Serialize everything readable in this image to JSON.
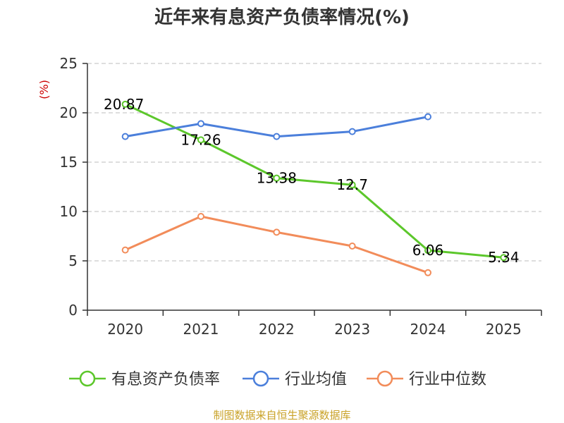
{
  "chart_data": {
    "type": "line",
    "title": "近年来有息资产负债率情况(%)",
    "ylabel": "(%)",
    "xlabel": "",
    "categories": [
      "2020",
      "2021",
      "2022",
      "2023",
      "2024",
      "2025"
    ],
    "ylim": [
      0,
      25
    ],
    "yticks": [
      0,
      5,
      10,
      15,
      20,
      25
    ],
    "grid": true,
    "legend_position": "bottom",
    "series": [
      {
        "name": "有息资产负债率",
        "color": "#5cc72b",
        "values": [
          20.87,
          17.26,
          13.38,
          12.7,
          6.06,
          5.34
        ],
        "labels": [
          "20.87",
          "17.26",
          "13.38",
          "12.7",
          "6.06",
          "5.34"
        ]
      },
      {
        "name": "行业均值",
        "color": "#4b7fdb",
        "values": [
          17.6,
          18.9,
          17.6,
          18.1,
          19.6,
          null
        ]
      },
      {
        "name": "行业中位数",
        "color": "#f28c5a",
        "values": [
          6.1,
          9.5,
          7.9,
          6.5,
          3.8,
          null
        ]
      }
    ]
  },
  "source_note": "制图数据来自恒生聚源数据库"
}
